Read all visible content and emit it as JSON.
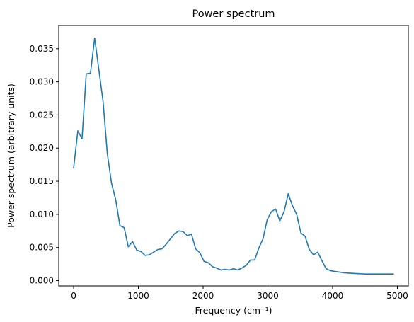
{
  "chart_data": {
    "type": "line",
    "title": "Power spectrum",
    "xlabel": "Frequency (cm⁻¹)",
    "ylabel": "Power spectrum (arbitrary units)",
    "xlim": [
      -230,
      5170
    ],
    "ylim": [
      -0.0008,
      0.0385
    ],
    "xticks": [
      0,
      1000,
      2000,
      3000,
      4000,
      5000
    ],
    "xtick_labels": [
      "0",
      "1000",
      "2000",
      "3000",
      "4000",
      "5000"
    ],
    "yticks": [
      0.0,
      0.005,
      0.01,
      0.015,
      0.02,
      0.025,
      0.03,
      0.035
    ],
    "ytick_labels": [
      "0.000",
      "0.005",
      "0.010",
      "0.015",
      "0.020",
      "0.025",
      "0.030",
      "0.035"
    ],
    "grid": false,
    "colors": {
      "line": "#1f77b4"
    },
    "series": [
      {
        "x": [
          0,
          65,
          130,
          195,
          260,
          325,
          390,
          455,
          520,
          585,
          650,
          715,
          780,
          845,
          910,
          975,
          1040,
          1105,
          1170,
          1235,
          1300,
          1365,
          1430,
          1495,
          1560,
          1625,
          1690,
          1755,
          1820,
          1885,
          1950,
          2015,
          2080,
          2145,
          2210,
          2275,
          2340,
          2405,
          2470,
          2535,
          2600,
          2665,
          2730,
          2795,
          2860,
          2925,
          2990,
          3055,
          3120,
          3185,
          3250,
          3315,
          3380,
          3445,
          3510,
          3575,
          3640,
          3705,
          3770,
          3835,
          3900,
          3965,
          4030,
          4095,
          4160,
          4300,
          4500,
          4700,
          4940
        ],
        "y": [
          0.017,
          0.0226,
          0.0214,
          0.0312,
          0.0313,
          0.0366,
          0.0318,
          0.027,
          0.0192,
          0.0147,
          0.0122,
          0.0083,
          0.008,
          0.0051,
          0.0059,
          0.0046,
          0.0044,
          0.0038,
          0.0039,
          0.0043,
          0.0047,
          0.0048,
          0.0055,
          0.0063,
          0.0071,
          0.0075,
          0.0074,
          0.0068,
          0.007,
          0.0048,
          0.0042,
          0.0029,
          0.0027,
          0.0021,
          0.0019,
          0.0016,
          0.0017,
          0.0016,
          0.0018,
          0.0016,
          0.0019,
          0.0023,
          0.0031,
          0.0031,
          0.0049,
          0.0063,
          0.0092,
          0.0104,
          0.0108,
          0.009,
          0.0104,
          0.0131,
          0.0113,
          0.01,
          0.0072,
          0.0067,
          0.0047,
          0.0039,
          0.0043,
          0.003,
          0.0018,
          0.0015,
          0.0014,
          0.0013,
          0.0012,
          0.0011,
          0.001,
          0.001,
          0.001
        ]
      }
    ]
  }
}
